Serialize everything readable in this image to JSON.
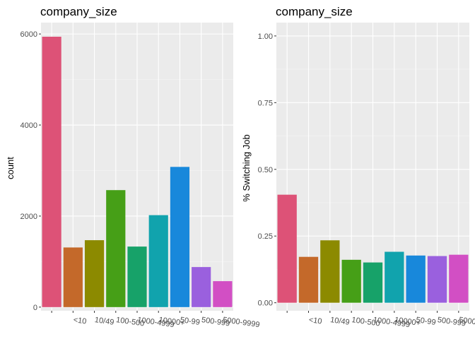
{
  "chart_data": [
    {
      "type": "bar",
      "title": "company_size",
      "xlabel": "",
      "ylabel": "count",
      "categories": [
        "",
        "<10",
        "10/49",
        "100-500",
        "1000-4999",
        "10000+",
        "50-99",
        "500-999",
        "5000-9999"
      ],
      "values": [
        5940,
        1310,
        1470,
        2570,
        1330,
        2020,
        3080,
        880,
        570
      ],
      "colors": [
        "#dd5277",
        "#c4692a",
        "#8c8a00",
        "#469f17",
        "#17a269",
        "#11a3ad",
        "#1888db",
        "#9a60de",
        "#d24fc4"
      ],
      "ylim": [
        -80,
        6250
      ],
      "y_ticks": [
        0,
        2000,
        4000,
        6000
      ],
      "y_tick_labels": [
        "0",
        "2000",
        "4000",
        "6000"
      ],
      "grid": true
    },
    {
      "type": "bar",
      "title": "company_size",
      "xlabel": "",
      "ylabel": "% Switching Job",
      "categories": [
        "",
        "<10",
        "10/49",
        "100-500",
        "1000-4999",
        "10000+",
        "50-99",
        "500-999",
        "5000-9999"
      ],
      "values": [
        0.405,
        0.172,
        0.234,
        0.161,
        0.151,
        0.191,
        0.177,
        0.175,
        0.18
      ],
      "colors": [
        "#dd5277",
        "#c4692a",
        "#8c8a00",
        "#469f17",
        "#17a269",
        "#11a3ad",
        "#1888db",
        "#9a60de",
        "#d24fc4"
      ],
      "ylim": [
        -0.03,
        1.05
      ],
      "y_ticks": [
        0,
        0.25,
        0.5,
        0.75,
        1
      ],
      "y_tick_labels": [
        "0.00",
        "0.25",
        "0.50",
        "0.75",
        "1.00"
      ],
      "grid": true
    }
  ]
}
